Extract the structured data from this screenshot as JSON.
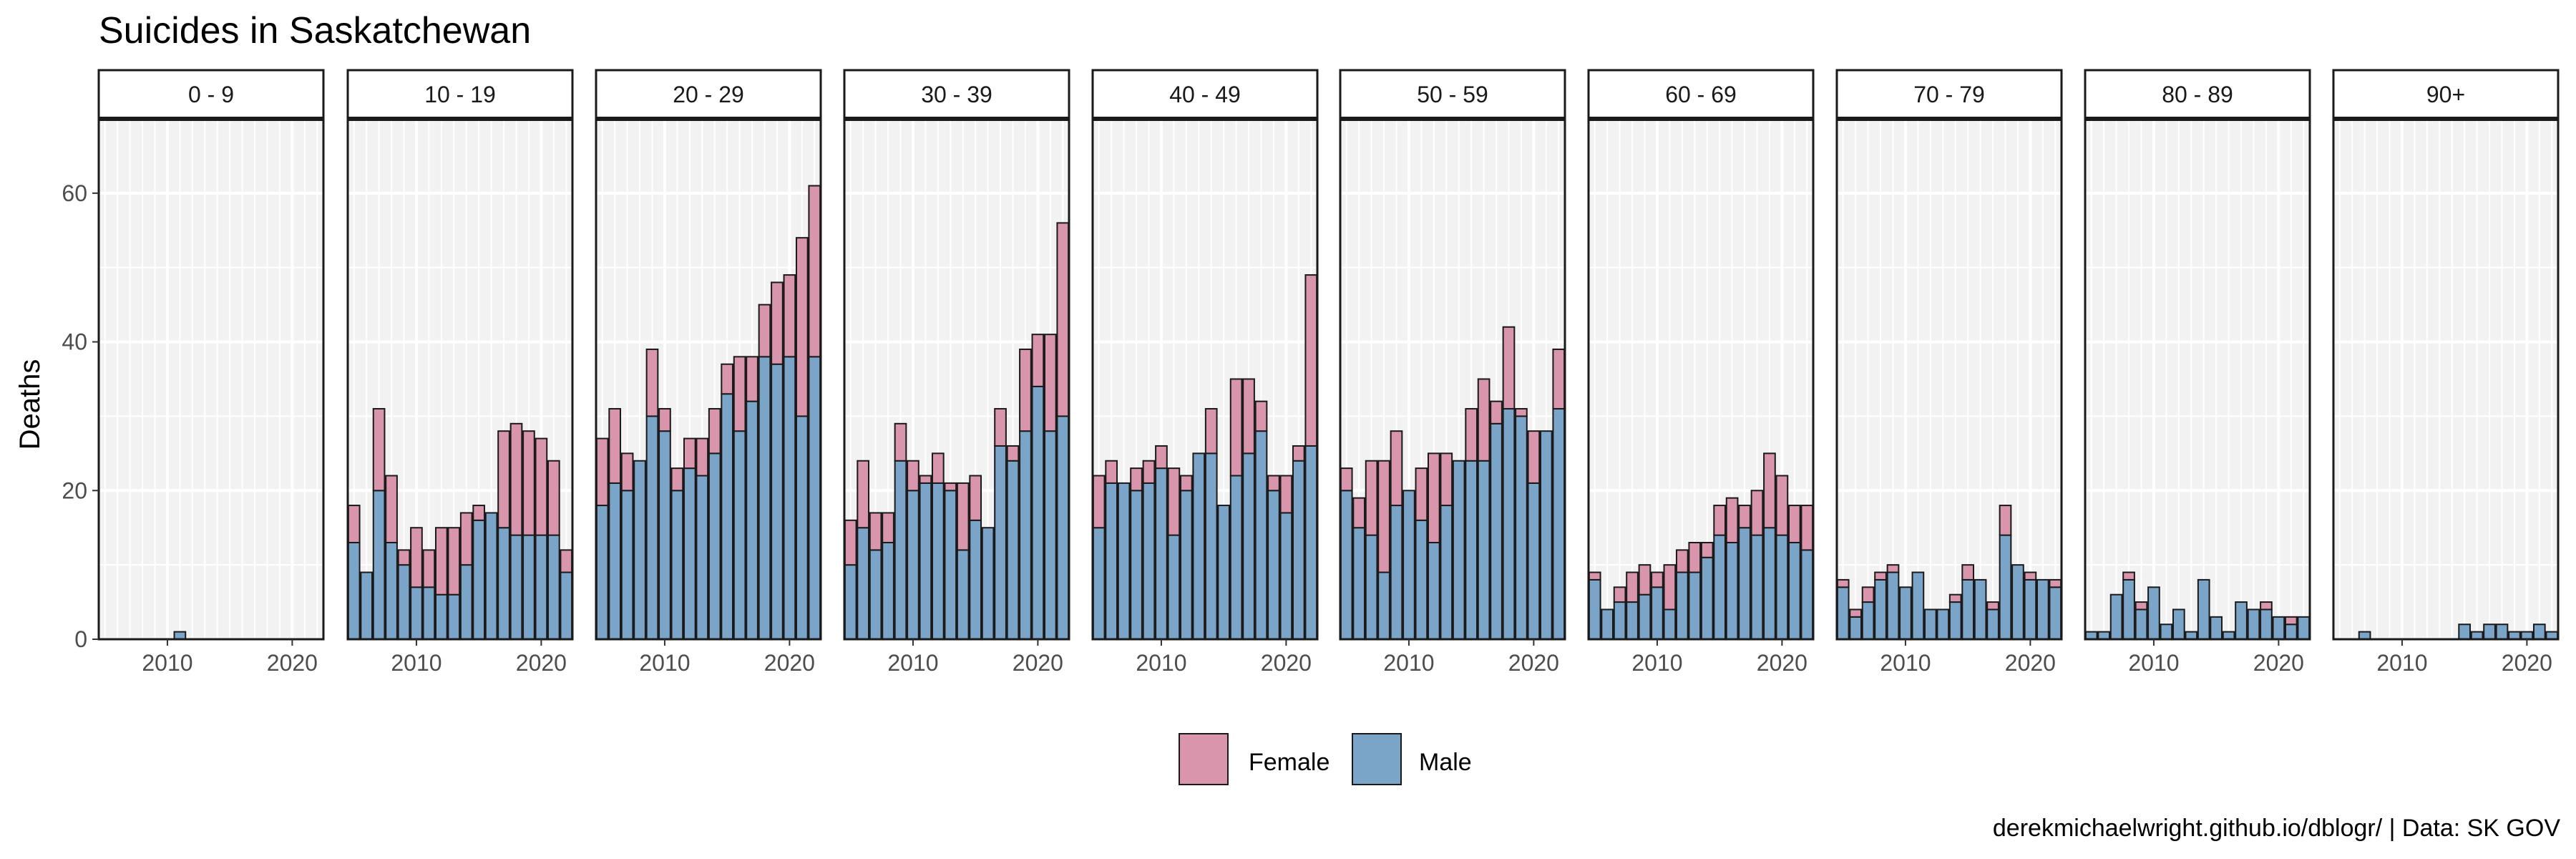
{
  "chart_data": {
    "type": "bar",
    "stacked": true,
    "title": "Suicides in Saskatchewan",
    "xlabel": "",
    "ylabel": "Deaths",
    "ylim": [
      0,
      70
    ],
    "yticks": [
      0,
      20,
      40,
      60
    ],
    "xlim": [
      2004.5,
      2022.5
    ],
    "xticks": [
      2010,
      2020
    ],
    "years": [
      2005,
      2006,
      2007,
      2008,
      2009,
      2010,
      2011,
      2012,
      2013,
      2014,
      2015,
      2016,
      2017,
      2018,
      2019,
      2020,
      2021,
      2022
    ],
    "colors": {
      "Female": "#d995ab",
      "Male": "#7ba4c9"
    },
    "legend": {
      "position": "bottom",
      "labels": [
        "Female",
        "Male"
      ]
    },
    "caption": "derekmichaelwright.github.io/dblogr/ | Data: SK GOV",
    "facets": [
      {
        "label": "0 - 9",
        "male": [
          0,
          0,
          0,
          0,
          0,
          0,
          1,
          0,
          0,
          0,
          0,
          0,
          0,
          0,
          0,
          0,
          0,
          0
        ],
        "female": [
          0,
          0,
          0,
          0,
          0,
          0,
          0,
          0,
          0,
          0,
          0,
          0,
          0,
          0,
          0,
          0,
          0,
          0
        ]
      },
      {
        "label": "10 - 19",
        "male": [
          13,
          9,
          20,
          13,
          10,
          7,
          7,
          6,
          6,
          10,
          16,
          17,
          15,
          14,
          14,
          14,
          14,
          9
        ],
        "female": [
          5,
          0,
          11,
          9,
          2,
          8,
          5,
          9,
          9,
          7,
          2,
          0,
          13,
          15,
          14,
          13,
          10,
          3
        ]
      },
      {
        "label": "20 - 29",
        "male": [
          18,
          21,
          20,
          24,
          30,
          28,
          20,
          23,
          22,
          25,
          33,
          28,
          32,
          38,
          37,
          38,
          30,
          38
        ],
        "female": [
          9,
          10,
          5,
          0,
          9,
          3,
          3,
          4,
          5,
          6,
          4,
          10,
          6,
          7,
          11,
          11,
          24,
          23
        ]
      },
      {
        "label": "30 - 39",
        "male": [
          10,
          15,
          12,
          13,
          24,
          20,
          21,
          21,
          20,
          12,
          16,
          15,
          26,
          24,
          28,
          34,
          28,
          30
        ],
        "female": [
          6,
          9,
          5,
          4,
          5,
          4,
          1,
          4,
          1,
          9,
          6,
          0,
          5,
          2,
          11,
          7,
          13,
          26
        ]
      },
      {
        "label": "40 - 49",
        "male": [
          15,
          21,
          21,
          20,
          21,
          23,
          14,
          20,
          25,
          25,
          18,
          22,
          25,
          28,
          20,
          17,
          24,
          26
        ],
        "female": [
          7,
          3,
          0,
          3,
          3,
          3,
          9,
          2,
          0,
          6,
          0,
          13,
          10,
          4,
          2,
          5,
          2,
          23
        ]
      },
      {
        "label": "50 - 59",
        "male": [
          20,
          15,
          14,
          9,
          18,
          20,
          16,
          13,
          18,
          24,
          24,
          24,
          29,
          31,
          30,
          21,
          28,
          31
        ],
        "female": [
          3,
          4,
          10,
          15,
          10,
          0,
          7,
          12,
          7,
          0,
          7,
          11,
          3,
          11,
          1,
          7,
          0,
          8
        ]
      },
      {
        "label": "60 - 69",
        "male": [
          8,
          4,
          5,
          5,
          6,
          7,
          4,
          9,
          9,
          11,
          14,
          13,
          15,
          14,
          15,
          14,
          13,
          12
        ],
        "female": [
          1,
          0,
          2,
          4,
          4,
          2,
          6,
          3,
          4,
          2,
          4,
          6,
          3,
          6,
          10,
          8,
          5,
          6
        ]
      },
      {
        "label": "70 - 79",
        "male": [
          7,
          3,
          5,
          8,
          9,
          7,
          9,
          4,
          4,
          5,
          8,
          8,
          4,
          14,
          10,
          8,
          8,
          7
        ],
        "female": [
          1,
          1,
          2,
          1,
          1,
          0,
          0,
          0,
          0,
          1,
          2,
          0,
          1,
          4,
          0,
          1,
          0,
          1
        ]
      },
      {
        "label": "80 - 89",
        "male": [
          1,
          1,
          6,
          8,
          4,
          7,
          2,
          4,
          1,
          8,
          3,
          1,
          5,
          4,
          4,
          3,
          2,
          3
        ],
        "female": [
          0,
          0,
          0,
          1,
          1,
          0,
          0,
          0,
          0,
          0,
          0,
          0,
          0,
          0,
          1,
          0,
          1,
          0
        ]
      },
      {
        "label": "90+",
        "male": [
          0,
          0,
          1,
          0,
          0,
          0,
          0,
          0,
          0,
          0,
          2,
          1,
          2,
          2,
          1,
          1,
          2,
          1
        ],
        "female": [
          0,
          0,
          0,
          0,
          0,
          0,
          0,
          0,
          0,
          0,
          0,
          0,
          0,
          0,
          0,
          0,
          0,
          0
        ]
      }
    ]
  }
}
